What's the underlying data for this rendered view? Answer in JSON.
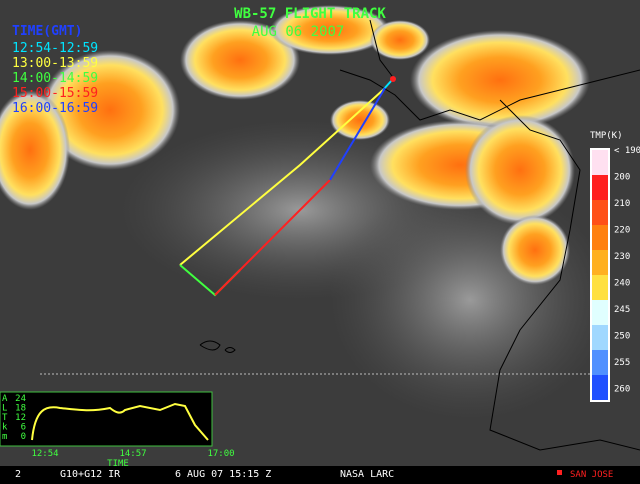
{
  "header": {
    "title": "WB-57 FLIGHT TRACK",
    "date": "AUG 06 2007"
  },
  "legend": {
    "title": "TIME(GMT)",
    "entries": [
      {
        "label": "12:54-12:59",
        "color": "#00e5ff"
      },
      {
        "label": "13:00-13:59",
        "color": "#ffff40"
      },
      {
        "label": "14:00-14:59",
        "color": "#40ff40"
      },
      {
        "label": "15:00-15:59",
        "color": "#ff2020"
      },
      {
        "label": "16:00-16:59",
        "color": "#2040ff"
      }
    ]
  },
  "colorbar": {
    "title": "TMP(K)",
    "labels": [
      "< 190",
      "200",
      "210",
      "220",
      "230",
      "240",
      "245",
      "250",
      "255",
      "260"
    ],
    "colors": [
      "#ffe0f0",
      "#ff2020",
      "#ff5018",
      "#ff8010",
      "#ffb020",
      "#ffe040",
      "#e0ffff",
      "#a0d8ff",
      "#5090ff",
      "#2050ff"
    ]
  },
  "inset": {
    "axis_letters": [
      "A",
      "L",
      "T",
      "k",
      "m"
    ],
    "y_labels": [
      "24",
      "18",
      "12",
      "6",
      "0"
    ],
    "x_labels": [
      "12:54",
      "14:57",
      "17:00"
    ],
    "x_title": "TIME"
  },
  "footer": {
    "frame": "2",
    "sensor": "G10+G12 IR",
    "time": "6 AUG 07 15:15 Z",
    "source": "NASA LARC",
    "marker": "SAN JOSE"
  }
}
